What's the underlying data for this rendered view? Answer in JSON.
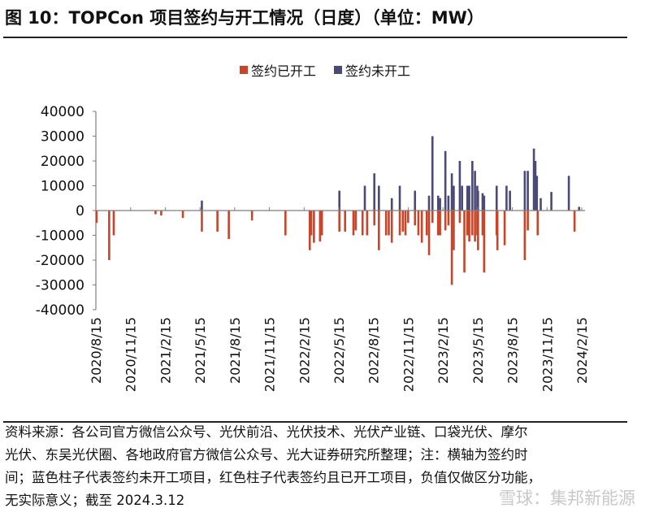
{
  "title": "图 10：TOPCon 项目签约与开工情况（日度）（单位：MW）",
  "colors": {
    "started": "#c8452a",
    "unstarted": "#4a4a75",
    "axis": "#7f7f7f"
  },
  "chart_data": {
    "type": "bar",
    "title": "图 10：TOPCon 项目签约与开工情况（日度）（单位：MW）",
    "xlabel": "",
    "ylabel": "",
    "ylim": [
      -40000,
      40000
    ],
    "yticks": [
      "40000",
      "30000",
      "20000",
      "10000",
      "0",
      "-10000",
      "-20000",
      "-30000",
      "-40000"
    ],
    "xlim": [
      "2020-08-15",
      "2024-02-15"
    ],
    "xticks": [
      "2020/8/15",
      "2020/11/15",
      "2021/2/15",
      "2021/5/15",
      "2021/8/15",
      "2021/11/15",
      "2022/2/15",
      "2022/5/15",
      "2022/8/15",
      "2022/11/15",
      "2023/2/15",
      "2023/5/15",
      "2023/8/15",
      "2023/11/15",
      "2024/2/15"
    ],
    "legend_position": "top",
    "grid": false,
    "series": [
      {
        "name": "签约已开工",
        "points": [
          [
            "2020-08-17",
            -5000
          ],
          [
            "2020-09-19",
            -20000
          ],
          [
            "2020-10-01",
            -10000
          ],
          [
            "2021-01-19",
            -1500
          ],
          [
            "2021-02-03",
            -2000
          ],
          [
            "2021-04-01",
            -3000
          ],
          [
            "2021-05-21",
            -8500
          ],
          [
            "2021-07-01",
            -8500
          ],
          [
            "2021-07-31",
            -11500
          ],
          [
            "2021-09-30",
            -4000
          ],
          [
            "2021-12-27",
            -10000
          ],
          [
            "2022-03-01",
            -16000
          ],
          [
            "2022-03-05",
            -10000
          ],
          [
            "2022-03-12",
            -13000
          ],
          [
            "2022-03-28",
            -12500
          ],
          [
            "2022-04-02",
            -10000
          ],
          [
            "2022-05-18",
            -8500
          ],
          [
            "2022-06-02",
            -8500
          ],
          [
            "2022-06-24",
            -10000
          ],
          [
            "2022-06-30",
            -8000
          ],
          [
            "2022-07-18",
            -10000
          ],
          [
            "2022-07-30",
            -10000
          ],
          [
            "2022-08-18",
            -6000
          ],
          [
            "2022-08-30",
            -16000
          ],
          [
            "2022-09-18",
            -10000
          ],
          [
            "2022-09-25",
            -10000
          ],
          [
            "2022-10-03",
            -13000
          ],
          [
            "2022-10-24",
            -10000
          ],
          [
            "2022-11-01",
            -8500
          ],
          [
            "2022-11-08",
            -10000
          ],
          [
            "2022-11-15",
            -5000
          ],
          [
            "2022-12-03",
            -6000
          ],
          [
            "2022-12-12",
            -10000
          ],
          [
            "2022-12-21",
            -13000
          ],
          [
            "2023-01-03",
            -10000
          ],
          [
            "2023-01-09",
            -18000
          ],
          [
            "2023-01-18",
            -5000
          ],
          [
            "2023-02-02",
            -10000
          ],
          [
            "2023-02-07",
            -10000
          ],
          [
            "2023-02-21",
            -8000
          ],
          [
            "2023-03-01",
            -6000
          ],
          [
            "2023-03-10",
            -30000
          ],
          [
            "2023-03-15",
            -16000
          ],
          [
            "2023-03-31",
            -5000
          ],
          [
            "2023-04-12",
            -25000
          ],
          [
            "2023-04-20",
            -10000
          ],
          [
            "2023-04-25",
            -12500
          ],
          [
            "2023-05-03",
            -10000
          ],
          [
            "2023-05-10",
            -12500
          ],
          [
            "2023-05-16",
            -10000
          ],
          [
            "2023-05-18",
            -16000
          ],
          [
            "2023-05-30",
            -10000
          ],
          [
            "2023-06-03",
            -25000
          ],
          [
            "2023-07-06",
            -10000
          ],
          [
            "2023-07-08",
            -16000
          ],
          [
            "2023-07-27",
            -14000
          ],
          [
            "2023-09-18",
            -20000
          ],
          [
            "2023-09-26",
            -8000
          ],
          [
            "2023-10-22",
            -10000
          ],
          [
            "2024-01-27",
            -8500
          ]
        ]
      },
      {
        "name": "签约未开工",
        "points": [
          [
            "2021-05-21",
            4000
          ],
          [
            "2022-05-18",
            8000
          ],
          [
            "2022-07-24",
            10000
          ],
          [
            "2022-08-18",
            15000
          ],
          [
            "2022-08-30",
            10000
          ],
          [
            "2022-10-03",
            5000
          ],
          [
            "2022-10-24",
            10000
          ],
          [
            "2022-12-03",
            8000
          ],
          [
            "2023-01-09",
            6000
          ],
          [
            "2023-01-18",
            30000
          ],
          [
            "2023-02-02",
            6000
          ],
          [
            "2023-02-07",
            5000
          ],
          [
            "2023-02-21",
            24000
          ],
          [
            "2023-03-01",
            6000
          ],
          [
            "2023-03-10",
            15000
          ],
          [
            "2023-03-15",
            10000
          ],
          [
            "2023-03-31",
            20000
          ],
          [
            "2023-04-06",
            10000
          ],
          [
            "2023-04-20",
            10000
          ],
          [
            "2023-04-25",
            10000
          ],
          [
            "2023-05-03",
            20000
          ],
          [
            "2023-05-10",
            16000
          ],
          [
            "2023-05-16",
            10000
          ],
          [
            "2023-05-18",
            8000
          ],
          [
            "2023-05-30",
            7000
          ],
          [
            "2023-06-03",
            6000
          ],
          [
            "2023-07-06",
            10000
          ],
          [
            "2023-08-01",
            10000
          ],
          [
            "2023-08-10",
            8000
          ],
          [
            "2023-09-18",
            16000
          ],
          [
            "2023-09-26",
            16000
          ],
          [
            "2023-10-12",
            25000
          ],
          [
            "2023-10-16",
            20000
          ],
          [
            "2023-10-20",
            14000
          ],
          [
            "2023-10-30",
            5000
          ],
          [
            "2023-11-27",
            7500
          ],
          [
            "2024-01-12",
            14000
          ],
          [
            "2024-02-08",
            1500
          ]
        ]
      }
    ]
  },
  "footer": {
    "lines": [
      "资料来源：各公司官方微信公众号、光伏前沿、光伏技术、光伏产业链、口袋光伏、摩尔",
      "光伏、东吴光伏圈、各地政府官方微信公众号、光大证券研究所整理；注：横轴为签约时",
      "间；蓝色柱子代表签约未开工项目，红色柱子代表签约且已开工项目，负值仅做区分功能，",
      "无实际意义；截至 2024.3.12"
    ]
  },
  "watermark": "雪球：集邦新能源"
}
